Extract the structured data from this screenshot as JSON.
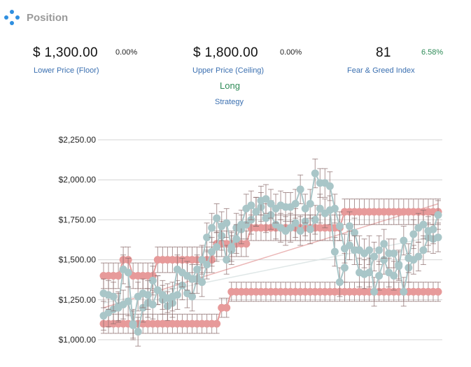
{
  "panel": {
    "title": "Position",
    "icon": "position-dots-icon"
  },
  "stats": {
    "lower": {
      "value": "$ 1,300.00",
      "change": "0.00%",
      "label": "Lower Price (Floor)"
    },
    "upper": {
      "value": "$ 1,800.00",
      "change": "0.00%",
      "label": "Upper Price (Ceiling)"
    },
    "fear_greed": {
      "value": "81",
      "change": "6.58%",
      "label": "Fear & Greed Index",
      "change_color": "#2e8b57"
    }
  },
  "strategy": {
    "value": "Long",
    "label": "Strategy"
  },
  "colors": {
    "price": "#a9c6c8",
    "bounds": "#e79a9a",
    "error_bar": "#8a6b6b",
    "grid": "#d4d4d4"
  },
  "chart_data": {
    "type": "line",
    "ylim": [
      1000,
      2250
    ],
    "y_ticks": [
      1000,
      1250,
      1500,
      1750,
      2000,
      2250
    ],
    "y_tick_labels": [
      "$1,000.00",
      "$1,250.00",
      "$1,500.00",
      "$1,750.00",
      "$2,000.00",
      "$2,250.00"
    ],
    "grid": true,
    "series": [
      {
        "key": "upper_bound",
        "color": "#e79a9a",
        "error": 80,
        "values": [
          1400,
          1400,
          1400,
          1400,
          1500,
          1500,
          1400,
          1400,
          1400,
          1400,
          1400,
          1500,
          1500,
          1500,
          1500,
          1500,
          1500,
          1500,
          1500,
          1500,
          1500,
          1500,
          1500,
          1600,
          1600,
          1600,
          1600,
          1600,
          1600,
          1600,
          1700,
          1700,
          1700,
          1700,
          1700,
          1700,
          1700,
          1700,
          1700,
          1700,
          1700,
          1700,
          1700,
          1700,
          1700,
          1700,
          1700,
          1700,
          1700,
          1800,
          1800,
          1800,
          1800,
          1800,
          1800,
          1800,
          1800,
          1800,
          1800,
          1800,
          1800,
          1800,
          1800,
          1800,
          1800,
          1800,
          1800,
          1800,
          1800
        ]
      },
      {
        "key": "lower_bound",
        "color": "#e79a9a",
        "error": 60,
        "values": [
          1100,
          1100,
          1100,
          1100,
          1100,
          1100,
          1100,
          1100,
          1100,
          1100,
          1100,
          1100,
          1100,
          1100,
          1100,
          1100,
          1100,
          1100,
          1100,
          1100,
          1100,
          1100,
          1100,
          1100,
          1200,
          1200,
          1300,
          1300,
          1300,
          1300,
          1300,
          1300,
          1300,
          1300,
          1300,
          1300,
          1300,
          1300,
          1300,
          1300,
          1300,
          1300,
          1300,
          1300,
          1300,
          1300,
          1300,
          1300,
          1300,
          1300,
          1300,
          1300,
          1300,
          1300,
          1300,
          1300,
          1300,
          1300,
          1300,
          1300,
          1300,
          1300,
          1300,
          1300,
          1300,
          1300,
          1300,
          1300,
          1300
        ]
      },
      {
        "key": "price_a",
        "color": "#a9c6c8",
        "error": 90,
        "values": [
          1150,
          1170,
          1190,
          1210,
          1440,
          1420,
          1100,
          1050,
          1200,
          1230,
          1370,
          1310,
          1250,
          1210,
          1230,
          1280,
          1340,
          1290,
          1270,
          1380,
          1500,
          1640,
          1700,
          1760,
          1650,
          1500,
          1560,
          1700,
          1690,
          1720,
          1750,
          1800,
          1830,
          1760,
          1780,
          1720,
          1700,
          1680,
          1700,
          1730,
          1680,
          1740,
          1690,
          1750,
          1820,
          1790,
          1810,
          1550,
          1360,
          1450,
          1710,
          1670,
          1560,
          1540,
          1560,
          1300,
          1400,
          1500,
          1420,
          1400,
          1470,
          1300,
          1450,
          1500,
          1520,
          1560,
          1640,
          1630,
          1640
        ]
      },
      {
        "key": "price_b",
        "color": "#a9c6c8",
        "error": 90,
        "values": [
          1290,
          1280,
          1270,
          1200,
          1220,
          1240,
          1090,
          1270,
          1290,
          1280,
          1220,
          1310,
          1280,
          1260,
          1270,
          1440,
          1420,
          1400,
          1380,
          1440,
          1360,
          1470,
          1550,
          1580,
          1710,
          1730,
          1580,
          1630,
          1720,
          1820,
          1840,
          1800,
          1870,
          1880,
          1850,
          1820,
          1840,
          1830,
          1830,
          1850,
          1940,
          1820,
          1850,
          2040,
          1980,
          1980,
          1960,
          1820,
          1710,
          1570,
          1590,
          1560,
          1420,
          1410,
          1420,
          1520,
          1560,
          1600,
          1540,
          1540,
          1460,
          1620,
          1510,
          1660,
          1700,
          1720,
          1680,
          1690,
          1780
        ]
      }
    ],
    "trend_lines": [
      {
        "from": [
          0,
          1200
        ],
        "to": [
          68,
          1850
        ],
        "color": "#e7a6a6"
      },
      {
        "from": [
          0,
          1230
        ],
        "to": [
          68,
          1650
        ],
        "color": "#d8e2e2"
      }
    ]
  }
}
